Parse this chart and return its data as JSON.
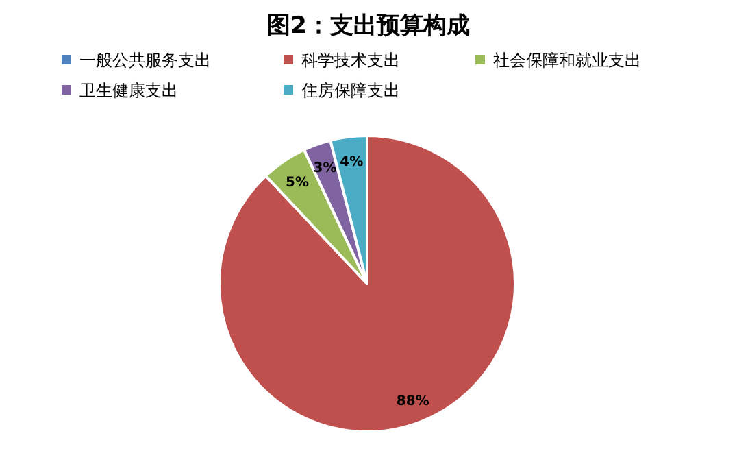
{
  "chart_data": {
    "type": "pie",
    "title": "图2：支出预算构成",
    "categories": [
      "一般公共服务支出",
      "科学技术支出",
      "社会保障和就业支出",
      "卫生健康支出",
      "住房保障支出"
    ],
    "values": [
      0,
      88,
      5,
      3,
      4
    ],
    "colors": [
      "#4f81bd",
      "#c0504d",
      "#9bbb59",
      "#8064a2",
      "#4bacc6"
    ],
    "value_labels": [
      null,
      "88%",
      "5%",
      "3%",
      "4%"
    ],
    "legend": "top"
  }
}
